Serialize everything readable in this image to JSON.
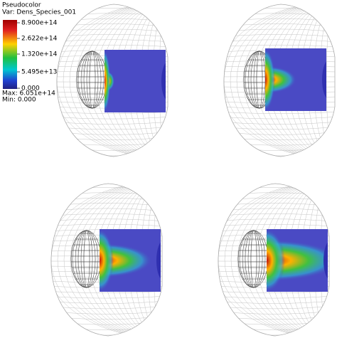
{
  "legend": {
    "title": "Pseudocolor",
    "variable": "Var: Dens_Species_001",
    "ticks": [
      "8.900e+14",
      "2.622e+14",
      "1.320e+14",
      "5.495e+13",
      "0.000"
    ],
    "max": "Max: 6.051e+14",
    "min": "Min: 0.000"
  }
}
